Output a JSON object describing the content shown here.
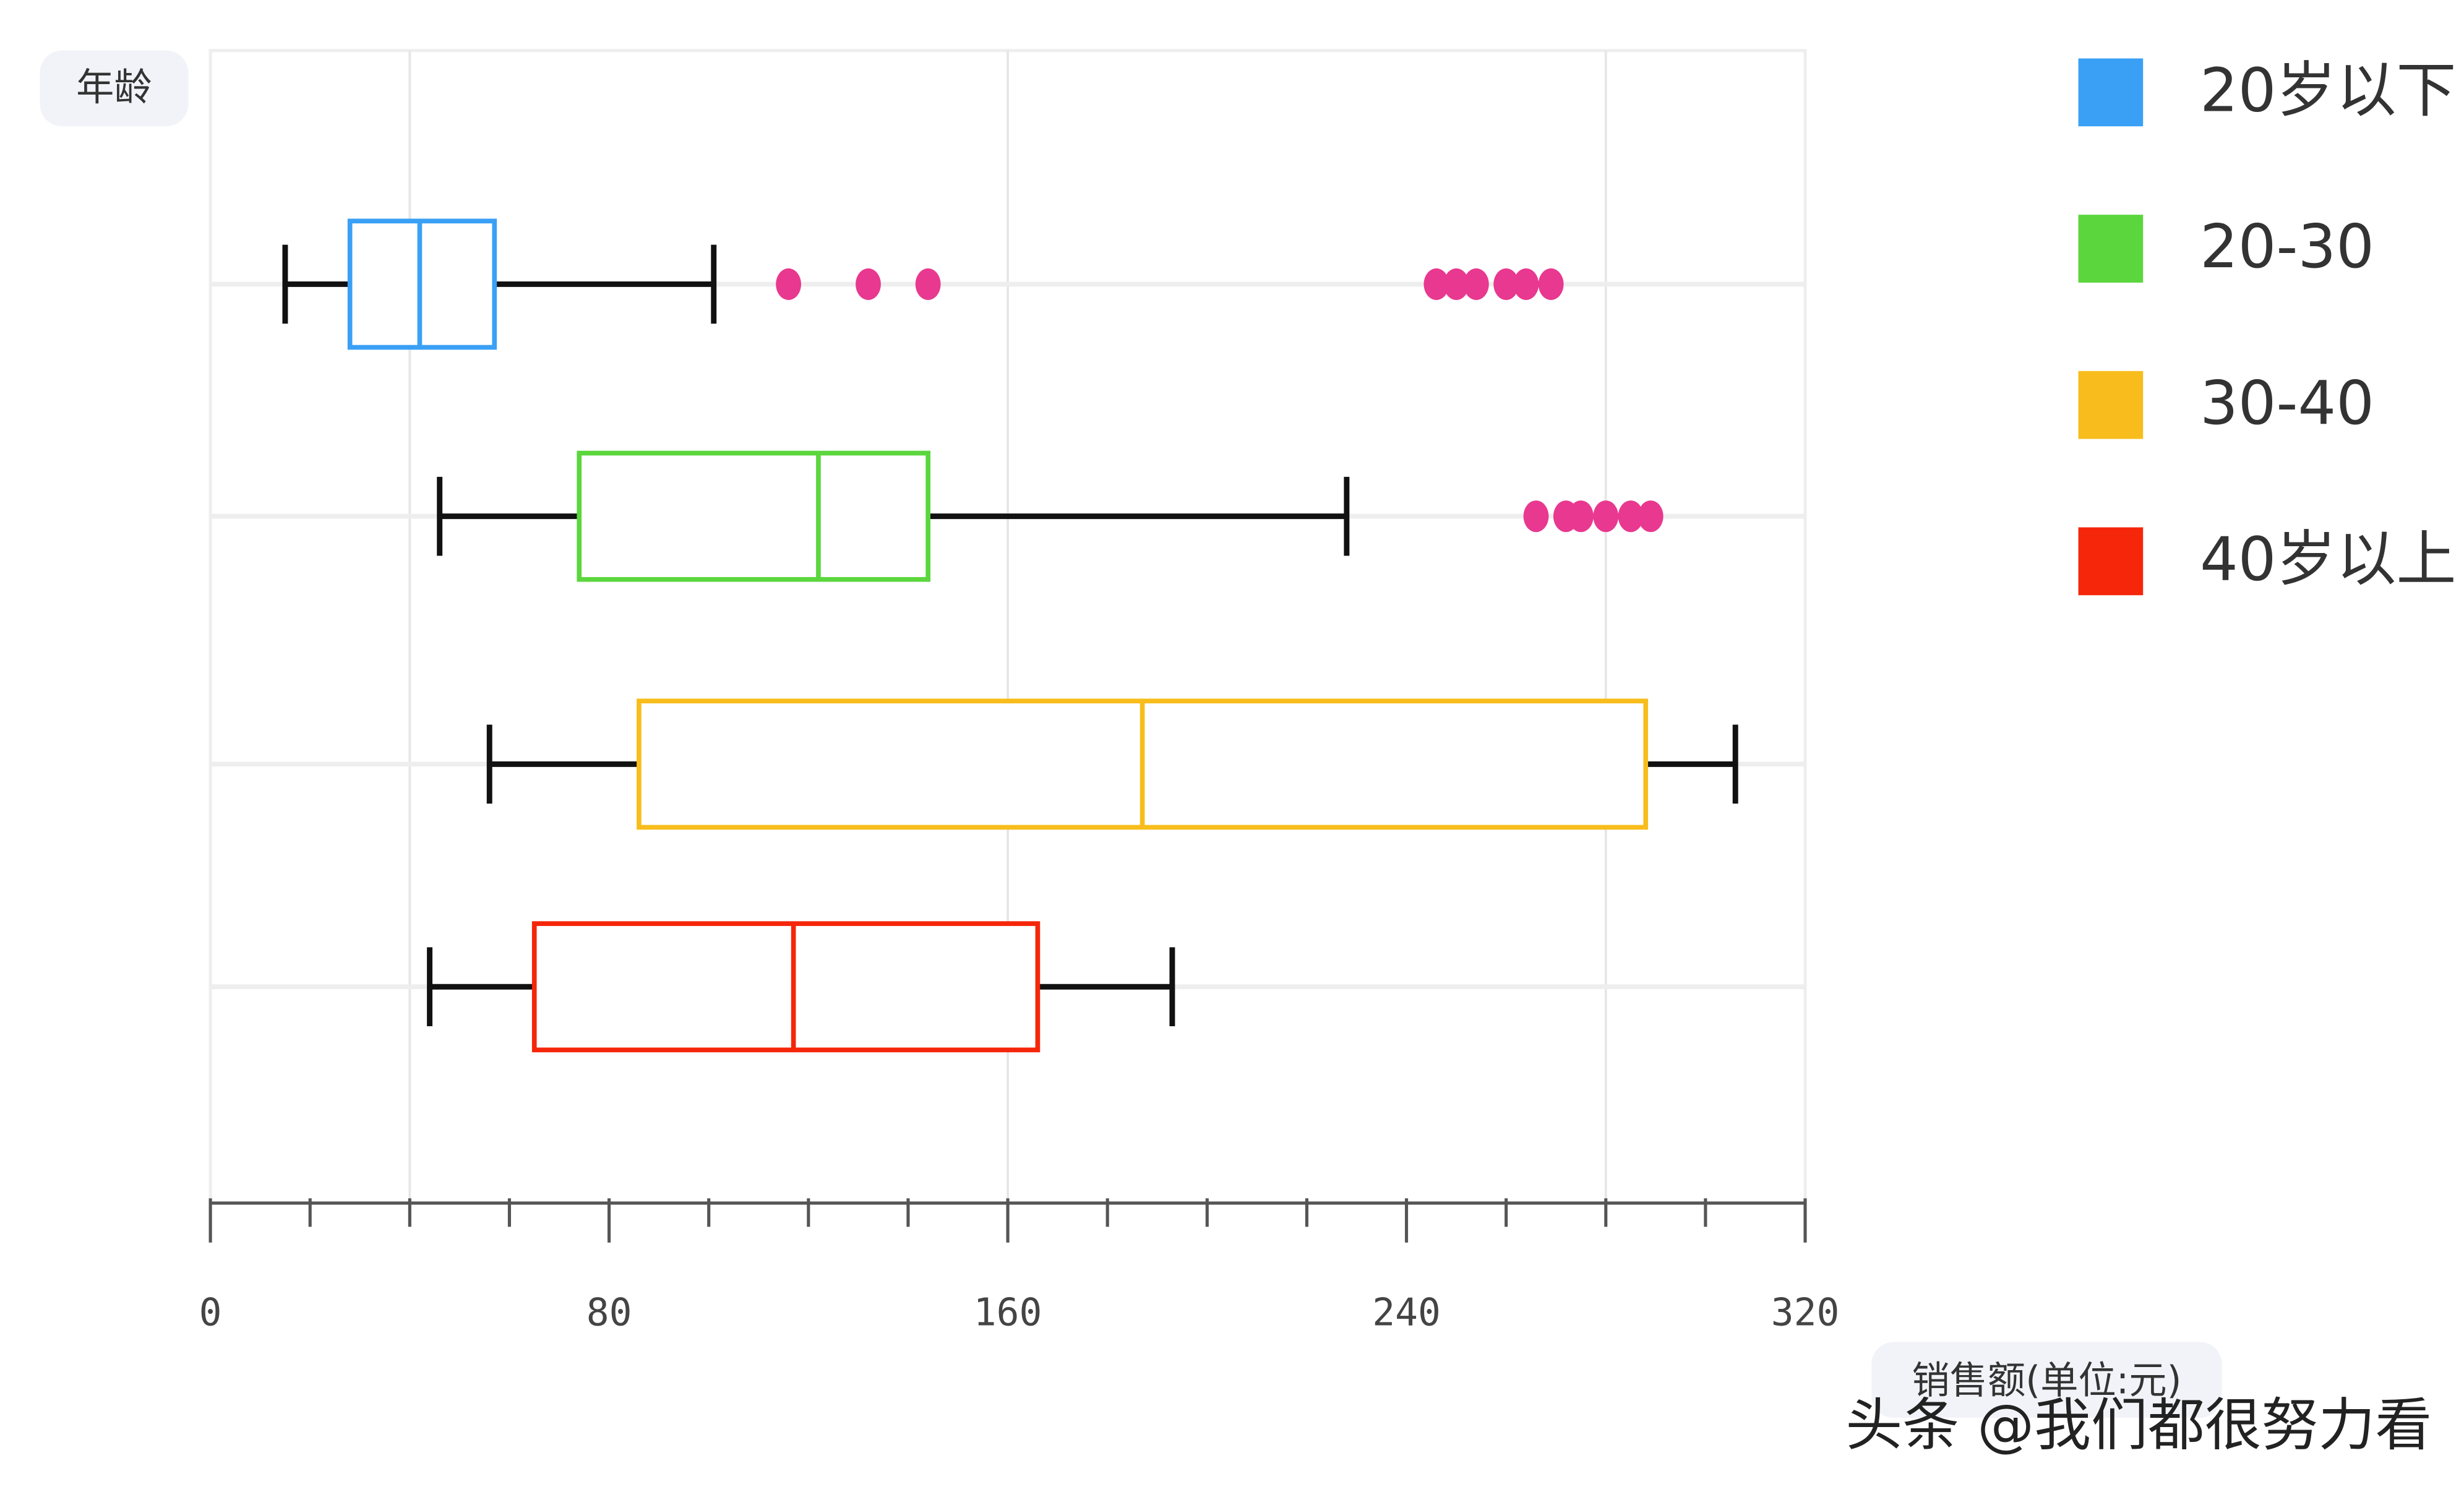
{
  "chart_data": {
    "type": "boxplot",
    "orientation": "horizontal",
    "y_label": "年龄",
    "x_label": "销售额(单位:元)",
    "watermark": "头条 @我们都很努力看",
    "xlim": [
      0,
      320
    ],
    "xticks": [
      0,
      80,
      160,
      240,
      320
    ],
    "xminorticks": [
      20,
      40,
      60,
      100,
      120,
      140,
      180,
      200,
      220,
      260,
      280,
      300
    ],
    "xgrid": [
      40,
      160,
      280
    ],
    "outlier_color": "#e8388f",
    "series": [
      {
        "name": "20岁以下",
        "color": "#3aa0f5",
        "whislo": 15,
        "q1": 28,
        "med": 42,
        "q3": 57,
        "whishi": 101,
        "outliers": [
          116,
          132,
          144,
          246,
          250,
          254,
          260,
          264,
          269
        ]
      },
      {
        "name": "20-30",
        "color": "#5bd63d",
        "whislo": 46,
        "q1": 74,
        "med": 122,
        "q3": 144,
        "whishi": 228,
        "outliers": [
          266,
          272,
          275,
          280,
          285,
          289
        ]
      },
      {
        "name": "30-40",
        "color": "#f8bd1c",
        "whislo": 56,
        "q1": 86,
        "med": 187,
        "q3": 288,
        "whishi": 306,
        "outliers": []
      },
      {
        "name": "40岁以上",
        "color": "#f5260a",
        "whislo": 44,
        "q1": 65,
        "med": 117,
        "q3": 166,
        "whishi": 193,
        "outliers": []
      }
    ]
  }
}
